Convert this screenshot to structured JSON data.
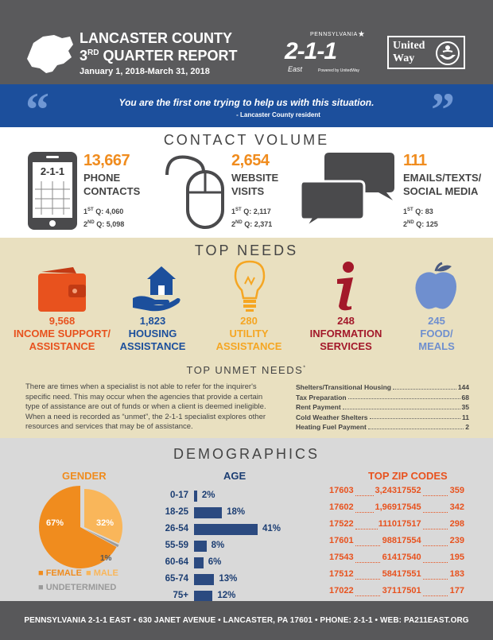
{
  "header": {
    "title": "LANCASTER COUNTY",
    "report_num": "3",
    "report_sup": "RD",
    "report_rest": "QUARTER REPORT",
    "dates": "January 1, 2018-March 31, 2018",
    "pa211_state": "PENNSYLVANIA",
    "pa211_num": "2-1-1",
    "pa211_east": "East",
    "pa211_powered": "Powered by UnitedWay",
    "uw_line1": "United",
    "uw_line2": "Way"
  },
  "quote": {
    "text": "You are the first one trying to help us with this situation.",
    "attribution": "- Lancaster County resident"
  },
  "contact_volume": {
    "title": "CONTACT VOLUME",
    "phone_screen": "2-1-1",
    "items": [
      {
        "value": "13,667",
        "label1": "PHONE",
        "label2": "CONTACTS",
        "q1": "4,060",
        "q2": "5,098"
      },
      {
        "value": "2,654",
        "label1": "WEBSITE",
        "label2": "VISITS",
        "q1": "2,117",
        "q2": "2,371"
      },
      {
        "value": "111",
        "label1": "EMAILS/TEXTS/",
        "label2": "SOCIAL MEDIA",
        "q1": "83",
        "q2": "125"
      }
    ],
    "q1_prefix": "1",
    "q1_sup": "ST",
    "q2_prefix": "2",
    "q2_sup": "ND",
    "q_suffix": " Q: "
  },
  "top_needs": {
    "title": "TOP NEEDS",
    "items": [
      {
        "value": "9,568",
        "label1": "INCOME SUPPORT/",
        "label2": "ASSISTANCE",
        "color": "#e8521e"
      },
      {
        "value": "1,823",
        "label1": "HOUSING",
        "label2": "ASSISTANCE",
        "color": "#1c4f9c"
      },
      {
        "value": "280",
        "label1": "UTILITY",
        "label2": "ASSISTANCE",
        "color": "#f5a623"
      },
      {
        "value": "248",
        "label1": "INFORMATION",
        "label2": "SERVICES",
        "color": "#a3182a"
      },
      {
        "value": "245",
        "label1": "FOOD/",
        "label2": "MEALS",
        "color": "#6f8fcf"
      }
    ]
  },
  "unmet_needs": {
    "title": "TOP UNMET NEEDS",
    "title_mark": "*",
    "description": "There are times when a specialist is not able to refer for the inquirer's specific need. This may occur when the agencies that provide a certain type of assistance are out of funds or when a client is deemed ineligible. When a need is recorded as “unmet”, the 2-1-1 specialist explores other resources and services that may be of assistance.",
    "items": [
      {
        "name": "Shelters/Transitional Housing",
        "count": "144"
      },
      {
        "name": "Tax Preparation",
        "count": "68"
      },
      {
        "name": "Rent Payment",
        "count": "35"
      },
      {
        "name": "Cold Weather Shelters",
        "count": "11"
      },
      {
        "name": "Heating Fuel Payment",
        "count": "2"
      }
    ]
  },
  "demographics": {
    "title": "DEMOGRAPHICS",
    "gender": {
      "title": "GENDER",
      "female_pct": 67,
      "male_pct": 32,
      "undetermined_pct": 1,
      "female_label": "67%",
      "male_label": "32%",
      "undetermined_label": "1%",
      "legend_female": "FEMALE",
      "legend_male": "MALE",
      "legend_undetermined": "UNDETERMINED",
      "female_color": "#f08c1e",
      "male_color": "#f9b65a",
      "undetermined_color": "#9a9a9a"
    },
    "age": {
      "title": "AGE",
      "rows": [
        {
          "label": "0-17",
          "pct": 2,
          "text": "2%"
        },
        {
          "label": "18-25",
          "pct": 18,
          "text": "18%"
        },
        {
          "label": "26-54",
          "pct": 41,
          "text": "41%"
        },
        {
          "label": "55-59",
          "pct": 8,
          "text": "8%"
        },
        {
          "label": "60-64",
          "pct": 6,
          "text": "6%"
        },
        {
          "label": "65-74",
          "pct": 13,
          "text": "13%"
        },
        {
          "label": "75+",
          "pct": 12,
          "text": "12%"
        }
      ]
    },
    "zip": {
      "title": "TOP ZIP CODES",
      "rows": [
        {
          "z1": "17603",
          "c1": "3,243",
          "z2": "17552",
          "c2": "359"
        },
        {
          "z1": "17602",
          "c1": "1,969",
          "z2": "17545",
          "c2": "342"
        },
        {
          "z1": "17522",
          "c1": "1110",
          "z2": "17517",
          "c2": "298"
        },
        {
          "z1": "17601",
          "c1": "988",
          "z2": "17554",
          "c2": "239"
        },
        {
          "z1": "17543",
          "c1": "614",
          "z2": "17540",
          "c2": "195"
        },
        {
          "z1": "17512",
          "c1": "584",
          "z2": "17551",
          "c2": "183"
        },
        {
          "z1": "17022",
          "c1": "371",
          "z2": "17501",
          "c2": "177"
        }
      ]
    }
  },
  "footer": {
    "text": "PENNSYLVANIA 2-1-1 EAST • 630 JANET AVENUE • LANCASTER, PA 17601 • PHONE: 2-1-1 • WEB: PA211EAST.ORG"
  }
}
